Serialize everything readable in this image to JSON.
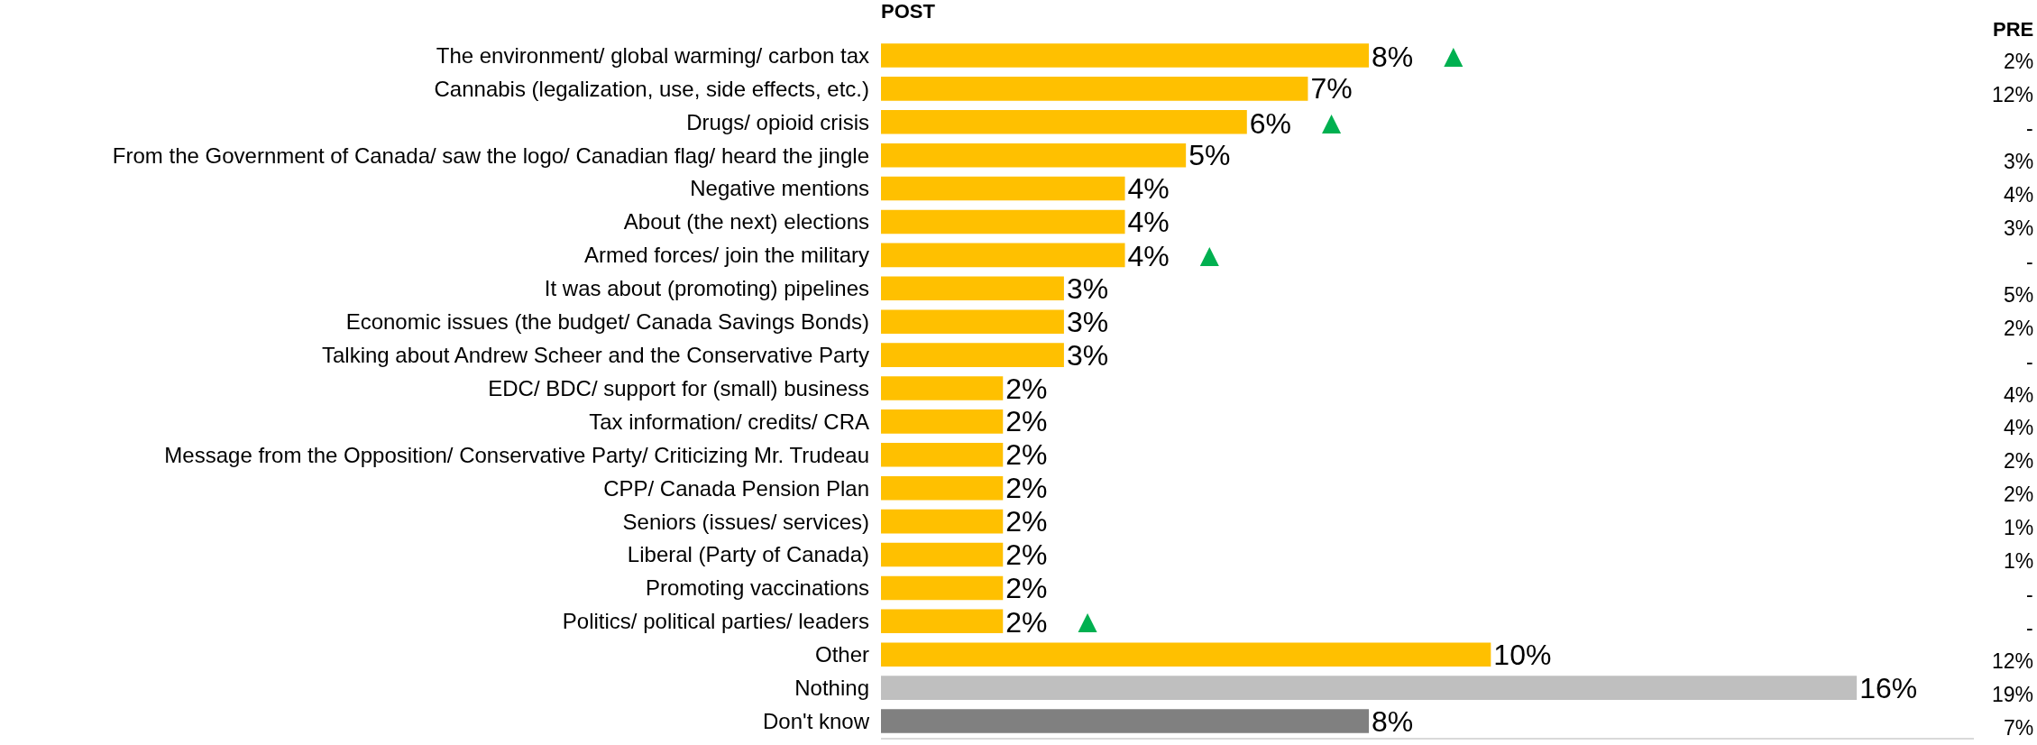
{
  "chart_data": {
    "type": "bar",
    "orientation": "horizontal",
    "title": "POST",
    "categories": [
      "The environment/ global warming/ carbon tax",
      "Cannabis (legalization, use, side effects, etc.)",
      "Drugs/ opioid crisis",
      "From the Government of Canada/ saw the logo/ Canadian flag/ heard the jingle",
      "Negative mentions",
      "About (the next) elections",
      "Armed forces/ join the military",
      "It was about (promoting) pipelines",
      "Economic issues (the budget/ Canada Savings Bonds)",
      "Talking about Andrew Scheer and the Conservative Party",
      "EDC/ BDC/ support for (small) business",
      "Tax information/ credits/ CRA",
      "Message from the Opposition/ Conservative Party/ Criticizing Mr. Trudeau",
      "CPP/ Canada Pension Plan",
      "Seniors (issues/ services)",
      "Liberal (Party of Canada)",
      "Promoting vaccinations",
      "Politics/ political parties/ leaders",
      "Other",
      "Nothing",
      "Don't know"
    ],
    "values": [
      8,
      7,
      6,
      5,
      4,
      4,
      4,
      3,
      3,
      3,
      2,
      2,
      2,
      2,
      2,
      2,
      2,
      2,
      10,
      16,
      8
    ],
    "value_labels": [
      "8% ▲",
      "7%",
      "6% ▲",
      "5%",
      "4%",
      "4%",
      "4% ▲",
      "3%",
      "3%",
      "3%",
      "2%",
      "2%",
      "2%",
      "2%",
      "2%",
      "2%",
      "2%",
      "2% ▲",
      "10%",
      "16%",
      "8%"
    ],
    "colors": [
      "#ffc000",
      "#ffc000",
      "#ffc000",
      "#ffc000",
      "#ffc000",
      "#ffc000",
      "#ffc000",
      "#ffc000",
      "#ffc000",
      "#ffc000",
      "#ffc000",
      "#ffc000",
      "#ffc000",
      "#ffc000",
      "#ffc000",
      "#ffc000",
      "#ffc000",
      "#ffc000",
      "#ffc000",
      "#bfbfbf",
      "#808080"
    ],
    "annotations": [
      "PRE",
      "2%",
      "12%",
      "-",
      "3%",
      "4%",
      "3%",
      "-",
      "5%",
      "2%",
      "-",
      "4%",
      "4%",
      "2%",
      "2%",
      "1%",
      "1%",
      "-",
      "-",
      "12%",
      "19%",
      "7%"
    ],
    "grid": false
  }
}
